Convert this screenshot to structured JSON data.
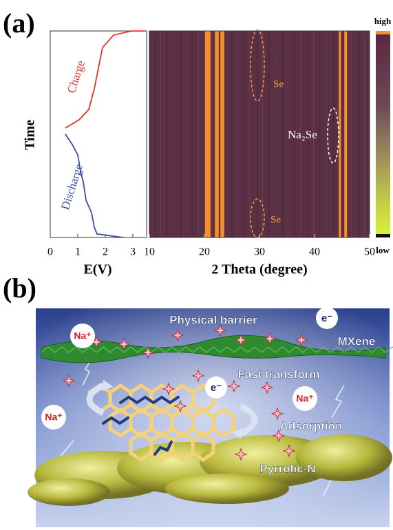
{
  "chart_data": [
    {
      "type": "line",
      "panel_label": "(a)",
      "xlabel": "E(V)",
      "ylabel": "Time",
      "xlim": [
        0,
        3.5
      ],
      "xticks": [
        0,
        1,
        2,
        3
      ],
      "ylim": [
        0,
        100
      ],
      "series": [
        {
          "name": "Charge",
          "color": "#e8302a",
          "x": [
            0.55,
            1.05,
            1.4,
            1.6,
            1.75,
            1.9,
            2.3,
            2.95,
            3.45
          ],
          "values": [
            53,
            57,
            62,
            72,
            82,
            92,
            98,
            100,
            100
          ]
        },
        {
          "name": "Discharge",
          "color": "#3a4ea0",
          "x": [
            2.65,
            1.7,
            1.6,
            1.5,
            1.3,
            1.2,
            1.1,
            1.0,
            0.8,
            0.55
          ],
          "values": [
            0,
            1.7,
            5,
            12,
            18,
            27,
            32,
            40,
            45,
            50
          ]
        }
      ]
    },
    {
      "type": "heatmap",
      "xlabel": "2 Theta (degree)",
      "xlim": [
        10,
        50
      ],
      "xticks": [
        10,
        20,
        30,
        40,
        50
      ],
      "band_color": "#f7902a",
      "bands": [
        {
          "start": 20.1,
          "end": 21.1
        },
        {
          "start": 21.9,
          "end": 22.6
        },
        {
          "start": 22.9,
          "end": 23.6
        },
        {
          "start": 44.4,
          "end": 44.8
        },
        {
          "start": 45.4,
          "end": 45.9
        }
      ],
      "annotations": [
        "Se",
        "Na₂Se",
        "Se"
      ],
      "colorbar": {
        "high": "high",
        "low": "low"
      }
    }
  ],
  "illustration": {
    "panel_label": "(b)",
    "labels": [
      "Physical barrier",
      "MXene",
      "Fast transform",
      "Adsorption",
      "Pyrrolic-N",
      "Na⁺",
      "Na⁺",
      "Na⁺",
      "e⁻",
      "e⁻"
    ]
  }
}
